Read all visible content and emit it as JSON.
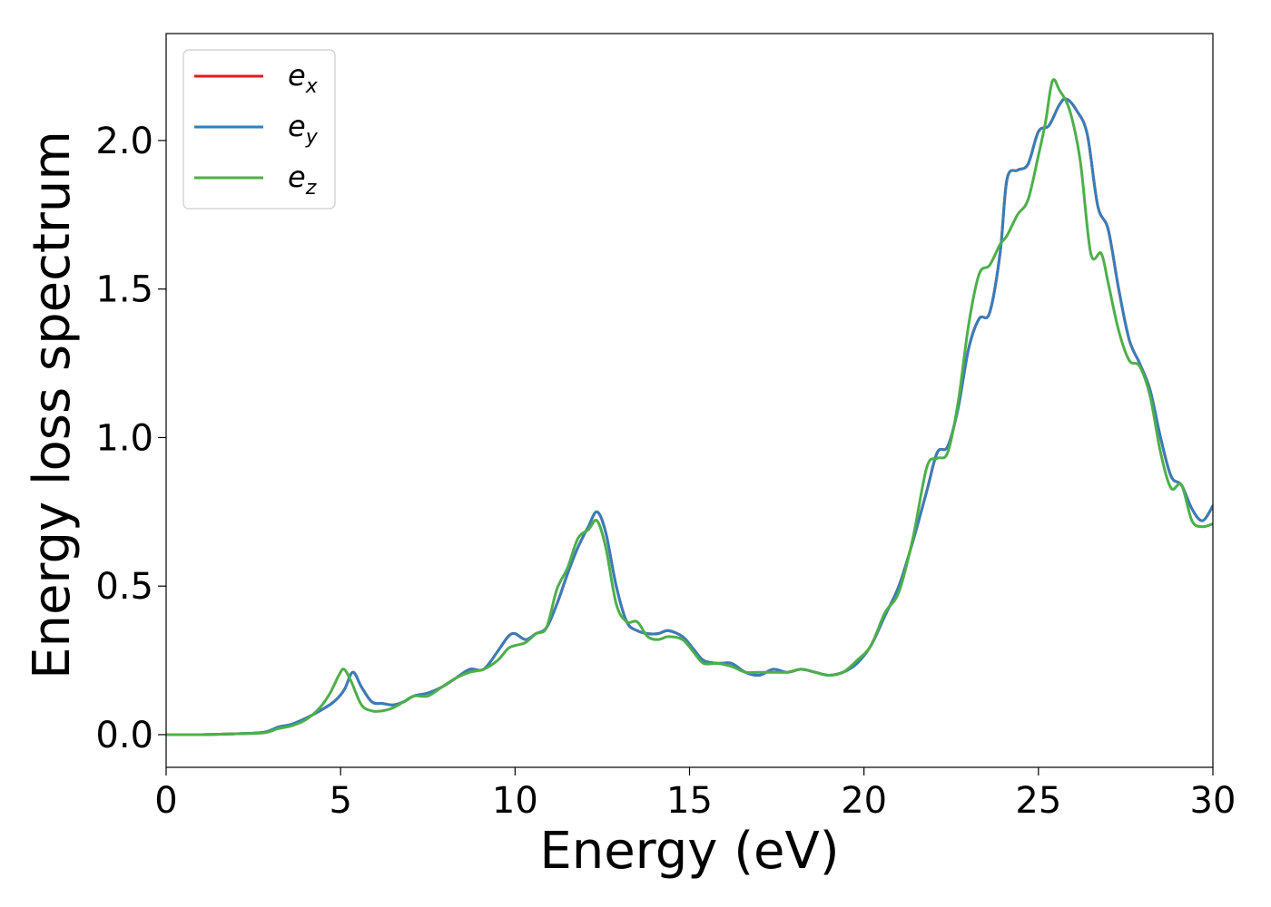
{
  "chart_data": {
    "type": "line",
    "xlabel": "Energy (eV)",
    "ylabel": "Energy loss spectrum",
    "xlim": [
      0,
      30
    ],
    "ylim": [
      -0.11,
      2.36
    ],
    "xticks": [
      "0",
      "5",
      "10",
      "15",
      "20",
      "25",
      "30"
    ],
    "xtick_values": [
      0,
      5,
      10,
      15,
      20,
      25,
      30
    ],
    "yticks": [
      "0.0",
      "0.5",
      "1.0",
      "1.5",
      "2.0"
    ],
    "ytick_values": [
      0,
      0.5,
      1.0,
      1.5,
      2.0
    ],
    "grid": false,
    "legend_position": "upper-left",
    "series": [
      {
        "name": "e_x",
        "label_main": "e",
        "label_sub": "x",
        "color": "#e41a1c",
        "x": [
          0,
          1,
          2,
          2.8,
          3.2,
          3.6,
          4.0,
          4.4,
          4.8,
          5.1,
          5.35,
          5.6,
          5.9,
          6.2,
          6.5,
          6.8,
          7.1,
          7.5,
          7.9,
          8.3,
          8.7,
          9.1,
          9.5,
          9.8,
          10.0,
          10.3,
          10.6,
          10.9,
          11.2,
          11.5,
          11.8,
          12.1,
          12.35,
          12.6,
          12.9,
          13.2,
          13.5,
          13.8,
          14.1,
          14.4,
          14.8,
          15.1,
          15.4,
          15.8,
          16.2,
          16.6,
          17.0,
          17.4,
          17.8,
          18.2,
          18.6,
          19.0,
          19.4,
          19.8,
          20.2,
          20.6,
          21.0,
          21.4,
          21.8,
          22.1,
          22.4,
          22.7,
          23.0,
          23.3,
          23.6,
          23.9,
          24.1,
          24.4,
          24.7,
          25.0,
          25.3,
          25.6,
          25.8,
          26.1,
          26.4,
          26.7,
          27.0,
          27.3,
          27.6,
          27.9,
          28.2,
          28.5,
          28.8,
          29.1,
          29.4,
          29.7,
          30.0
        ],
        "values": [
          0,
          0,
          0.003,
          0.008,
          0.025,
          0.035,
          0.055,
          0.08,
          0.11,
          0.15,
          0.21,
          0.16,
          0.11,
          0.105,
          0.1,
          0.11,
          0.13,
          0.14,
          0.16,
          0.19,
          0.22,
          0.22,
          0.28,
          0.33,
          0.34,
          0.32,
          0.34,
          0.36,
          0.44,
          0.54,
          0.63,
          0.7,
          0.75,
          0.68,
          0.5,
          0.38,
          0.35,
          0.34,
          0.34,
          0.35,
          0.33,
          0.29,
          0.25,
          0.24,
          0.24,
          0.21,
          0.2,
          0.22,
          0.21,
          0.22,
          0.21,
          0.2,
          0.21,
          0.24,
          0.3,
          0.4,
          0.5,
          0.65,
          0.82,
          0.95,
          0.97,
          1.1,
          1.3,
          1.4,
          1.42,
          1.62,
          1.87,
          1.9,
          1.92,
          2.03,
          2.05,
          2.12,
          2.14,
          2.1,
          2.02,
          1.78,
          1.7,
          1.5,
          1.33,
          1.25,
          1.16,
          1.0,
          0.87,
          0.84,
          0.76,
          0.72,
          0.77
        ]
      },
      {
        "name": "e_y",
        "label_main": "e",
        "label_sub": "y",
        "color": "#377eb8",
        "x": [
          0,
          1,
          2,
          2.8,
          3.2,
          3.6,
          4.0,
          4.4,
          4.8,
          5.1,
          5.35,
          5.6,
          5.9,
          6.2,
          6.5,
          6.8,
          7.1,
          7.5,
          7.9,
          8.3,
          8.7,
          9.1,
          9.5,
          9.8,
          10.0,
          10.3,
          10.6,
          10.9,
          11.2,
          11.5,
          11.8,
          12.1,
          12.35,
          12.6,
          12.9,
          13.2,
          13.5,
          13.8,
          14.1,
          14.4,
          14.8,
          15.1,
          15.4,
          15.8,
          16.2,
          16.6,
          17.0,
          17.4,
          17.8,
          18.2,
          18.6,
          19.0,
          19.4,
          19.8,
          20.2,
          20.6,
          21.0,
          21.4,
          21.8,
          22.1,
          22.4,
          22.7,
          23.0,
          23.3,
          23.6,
          23.9,
          24.1,
          24.4,
          24.7,
          25.0,
          25.3,
          25.6,
          25.8,
          26.1,
          26.4,
          26.7,
          27.0,
          27.3,
          27.6,
          27.9,
          28.2,
          28.5,
          28.8,
          29.1,
          29.4,
          29.7,
          30.0
        ],
        "values": [
          0,
          0,
          0.003,
          0.008,
          0.025,
          0.035,
          0.055,
          0.08,
          0.11,
          0.15,
          0.21,
          0.16,
          0.11,
          0.105,
          0.1,
          0.11,
          0.13,
          0.14,
          0.16,
          0.19,
          0.22,
          0.22,
          0.28,
          0.33,
          0.34,
          0.32,
          0.34,
          0.36,
          0.44,
          0.54,
          0.63,
          0.7,
          0.75,
          0.68,
          0.5,
          0.38,
          0.35,
          0.34,
          0.34,
          0.35,
          0.33,
          0.29,
          0.25,
          0.24,
          0.24,
          0.21,
          0.2,
          0.22,
          0.21,
          0.22,
          0.21,
          0.2,
          0.21,
          0.24,
          0.3,
          0.4,
          0.5,
          0.65,
          0.82,
          0.95,
          0.97,
          1.1,
          1.3,
          1.4,
          1.42,
          1.62,
          1.87,
          1.9,
          1.92,
          2.03,
          2.05,
          2.12,
          2.14,
          2.1,
          2.02,
          1.78,
          1.7,
          1.5,
          1.33,
          1.25,
          1.16,
          1.0,
          0.87,
          0.84,
          0.76,
          0.72,
          0.77
        ]
      },
      {
        "name": "e_z",
        "label_main": "e",
        "label_sub": "z",
        "color": "#4daf4a",
        "x": [
          0,
          1,
          2,
          2.8,
          3.2,
          3.6,
          4.0,
          4.4,
          4.7,
          4.95,
          5.1,
          5.3,
          5.6,
          5.9,
          6.2,
          6.5,
          6.8,
          7.1,
          7.5,
          7.9,
          8.3,
          8.7,
          9.1,
          9.5,
          9.8,
          10.0,
          10.3,
          10.6,
          10.9,
          11.2,
          11.5,
          11.8,
          12.1,
          12.35,
          12.6,
          12.9,
          13.2,
          13.5,
          13.8,
          14.1,
          14.4,
          14.8,
          15.1,
          15.4,
          15.8,
          16.2,
          16.6,
          17.0,
          17.4,
          17.8,
          18.2,
          18.6,
          19.0,
          19.4,
          19.8,
          20.2,
          20.6,
          21.0,
          21.4,
          21.8,
          22.1,
          22.4,
          22.7,
          23.0,
          23.3,
          23.6,
          23.9,
          24.1,
          24.4,
          24.7,
          25.0,
          25.2,
          25.4,
          25.6,
          25.9,
          26.2,
          26.5,
          26.8,
          27.0,
          27.3,
          27.6,
          27.9,
          28.2,
          28.5,
          28.8,
          29.1,
          29.4,
          29.7,
          30.0
        ],
        "values": [
          0,
          0,
          0.003,
          0.006,
          0.02,
          0.03,
          0.05,
          0.09,
          0.14,
          0.2,
          0.22,
          0.18,
          0.1,
          0.08,
          0.08,
          0.09,
          0.11,
          0.13,
          0.13,
          0.16,
          0.19,
          0.21,
          0.22,
          0.25,
          0.29,
          0.3,
          0.31,
          0.34,
          0.36,
          0.49,
          0.56,
          0.66,
          0.69,
          0.72,
          0.63,
          0.44,
          0.38,
          0.38,
          0.33,
          0.32,
          0.33,
          0.32,
          0.28,
          0.24,
          0.24,
          0.23,
          0.21,
          0.21,
          0.21,
          0.21,
          0.22,
          0.21,
          0.2,
          0.21,
          0.25,
          0.3,
          0.41,
          0.48,
          0.66,
          0.9,
          0.93,
          0.95,
          1.12,
          1.38,
          1.55,
          1.58,
          1.65,
          1.68,
          1.75,
          1.8,
          1.95,
          2.06,
          2.2,
          2.17,
          2.1,
          1.93,
          1.62,
          1.62,
          1.52,
          1.36,
          1.26,
          1.24,
          1.14,
          0.95,
          0.83,
          0.84,
          0.72,
          0.7,
          0.71
        ]
      }
    ]
  }
}
